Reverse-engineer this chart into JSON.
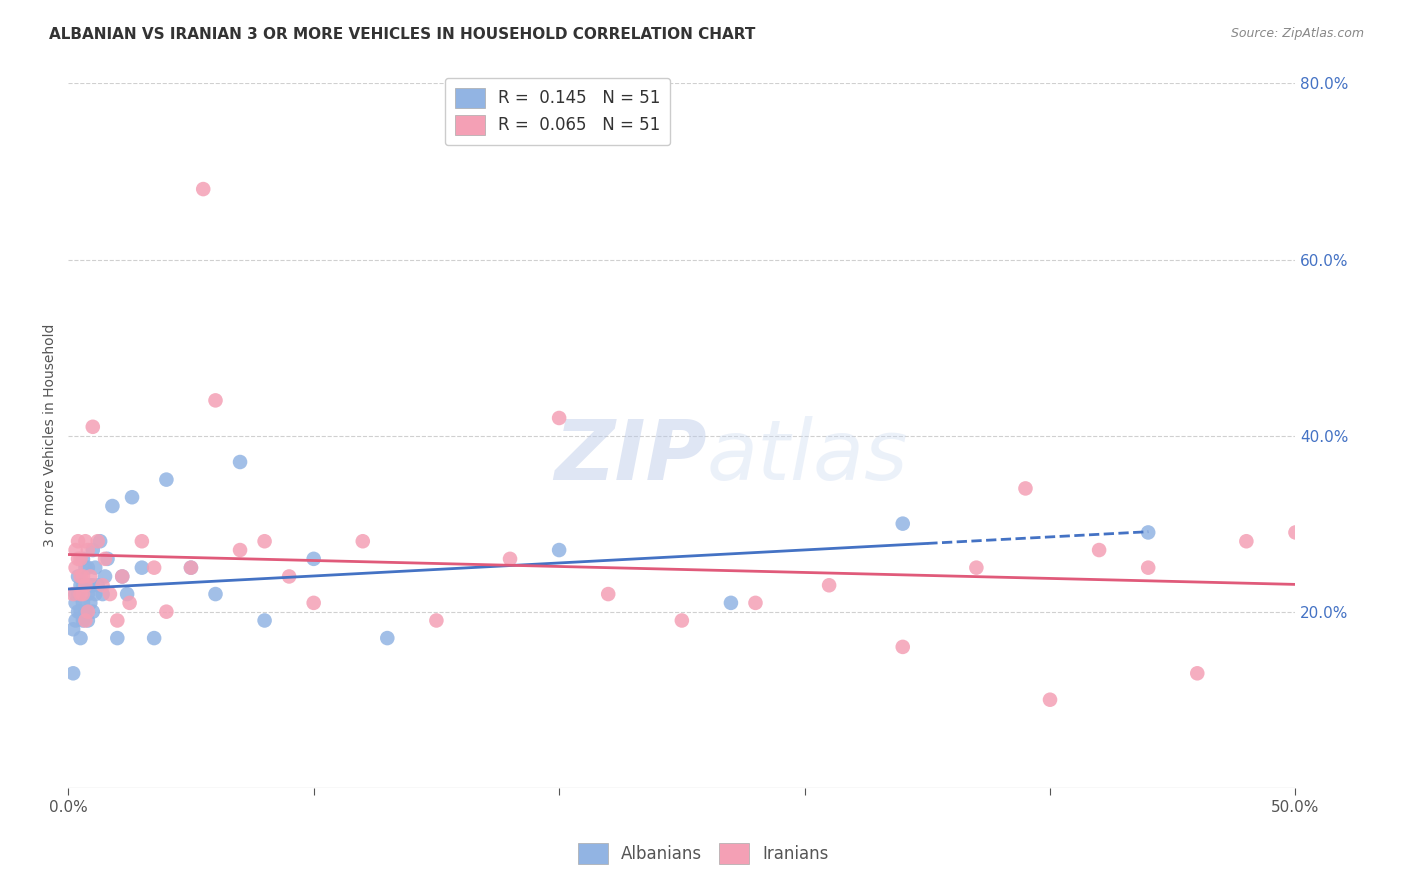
{
  "title": "ALBANIAN VS IRANIAN 3 OR MORE VEHICLES IN HOUSEHOLD CORRELATION CHART",
  "source": "Source: ZipAtlas.com",
  "ylabel": "3 or more Vehicles in Household",
  "xlim": [
    0.0,
    0.5
  ],
  "ylim": [
    0.0,
    0.8
  ],
  "xticks": [
    0.0,
    0.1,
    0.2,
    0.3,
    0.4,
    0.5
  ],
  "yticks": [
    0.0,
    0.2,
    0.4,
    0.6,
    0.8
  ],
  "xticklabels": [
    "0.0%",
    "",
    "",
    "",
    "",
    "50.0%"
  ],
  "yticklabels": [
    "",
    "20.0%",
    "40.0%",
    "60.0%",
    "80.0%"
  ],
  "albanian_color": "#92b4e3",
  "iranian_color": "#f4a0b5",
  "albanian_line_color": "#4472c4",
  "iranian_line_color": "#e05a7a",
  "legend_albanian_R": "0.145",
  "legend_albanian_N": "51",
  "legend_iranian_R": "0.065",
  "legend_iranian_N": "51",
  "albanian_x": [
    0.002,
    0.002,
    0.003,
    0.003,
    0.003,
    0.004,
    0.004,
    0.004,
    0.005,
    0.005,
    0.005,
    0.006,
    0.006,
    0.006,
    0.006,
    0.007,
    0.007,
    0.007,
    0.008,
    0.008,
    0.008,
    0.009,
    0.009,
    0.01,
    0.01,
    0.01,
    0.011,
    0.011,
    0.012,
    0.013,
    0.014,
    0.015,
    0.016,
    0.018,
    0.02,
    0.022,
    0.024,
    0.026,
    0.03,
    0.035,
    0.04,
    0.05,
    0.06,
    0.07,
    0.08,
    0.1,
    0.13,
    0.2,
    0.27,
    0.34,
    0.44
  ],
  "albanian_y": [
    0.13,
    0.18,
    0.19,
    0.21,
    0.22,
    0.2,
    0.22,
    0.24,
    0.17,
    0.2,
    0.23,
    0.19,
    0.21,
    0.23,
    0.26,
    0.2,
    0.23,
    0.25,
    0.19,
    0.22,
    0.25,
    0.21,
    0.23,
    0.2,
    0.23,
    0.27,
    0.22,
    0.25,
    0.23,
    0.28,
    0.22,
    0.24,
    0.26,
    0.32,
    0.17,
    0.24,
    0.22,
    0.33,
    0.25,
    0.17,
    0.35,
    0.25,
    0.22,
    0.37,
    0.19,
    0.26,
    0.17,
    0.27,
    0.21,
    0.3,
    0.29
  ],
  "iranian_x": [
    0.002,
    0.003,
    0.003,
    0.004,
    0.004,
    0.005,
    0.005,
    0.005,
    0.006,
    0.006,
    0.007,
    0.007,
    0.007,
    0.008,
    0.008,
    0.009,
    0.01,
    0.012,
    0.014,
    0.015,
    0.017,
    0.02,
    0.022,
    0.025,
    0.03,
    0.035,
    0.04,
    0.05,
    0.06,
    0.07,
    0.08,
    0.09,
    0.1,
    0.12,
    0.15,
    0.18,
    0.22,
    0.25,
    0.28,
    0.31,
    0.34,
    0.37,
    0.4,
    0.42,
    0.44,
    0.46,
    0.48,
    0.5,
    0.39,
    0.055,
    0.2
  ],
  "iranian_y": [
    0.22,
    0.25,
    0.27,
    0.26,
    0.28,
    0.22,
    0.24,
    0.26,
    0.22,
    0.24,
    0.19,
    0.23,
    0.28,
    0.2,
    0.27,
    0.24,
    0.41,
    0.28,
    0.23,
    0.26,
    0.22,
    0.19,
    0.24,
    0.21,
    0.28,
    0.25,
    0.2,
    0.25,
    0.44,
    0.27,
    0.28,
    0.24,
    0.21,
    0.28,
    0.19,
    0.26,
    0.22,
    0.19,
    0.21,
    0.23,
    0.16,
    0.25,
    0.1,
    0.27,
    0.25,
    0.13,
    0.28,
    0.29,
    0.34,
    0.68,
    0.42
  ],
  "watermark_text": "ZIPatlas",
  "background_color": "#ffffff",
  "grid_color": "#d0d0d0",
  "right_axis_color": "#4472c4",
  "title_fontsize": 11,
  "axis_label_fontsize": 10,
  "tick_fontsize": 11
}
